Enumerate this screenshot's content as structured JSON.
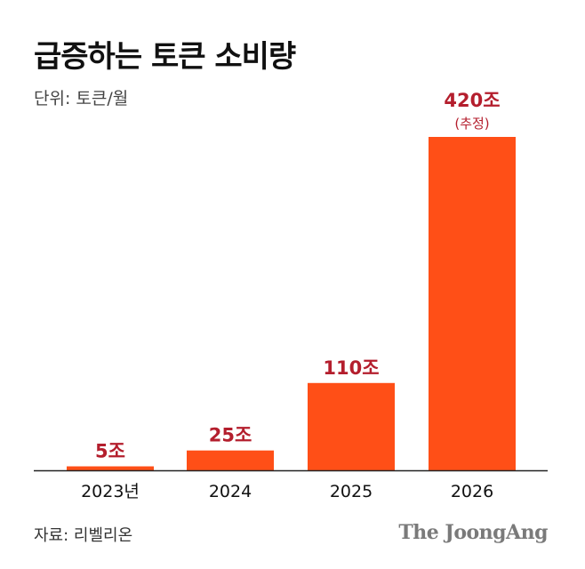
{
  "title": "급증하는 토큰 소비량",
  "unit_label": "단위: 토큰/월",
  "source_label": "자료: 리벨리온",
  "brand": "The JoongAng",
  "colors": {
    "bar": "#FF4F17",
    "value_label": "#B41E2D",
    "axis": "#222222"
  },
  "chart_data": {
    "type": "bar",
    "categories": [
      "2023년",
      "2024",
      "2025",
      "2026"
    ],
    "values": [
      5,
      25,
      110,
      420
    ],
    "value_labels": [
      "5조",
      "25조",
      "110조",
      "420조"
    ],
    "annotations": [
      "",
      "",
      "",
      "(추정)"
    ],
    "title": "급증하는 토큰 소비량",
    "xlabel": "",
    "ylabel": "",
    "ylim": [
      0,
      420
    ],
    "grid": false
  }
}
